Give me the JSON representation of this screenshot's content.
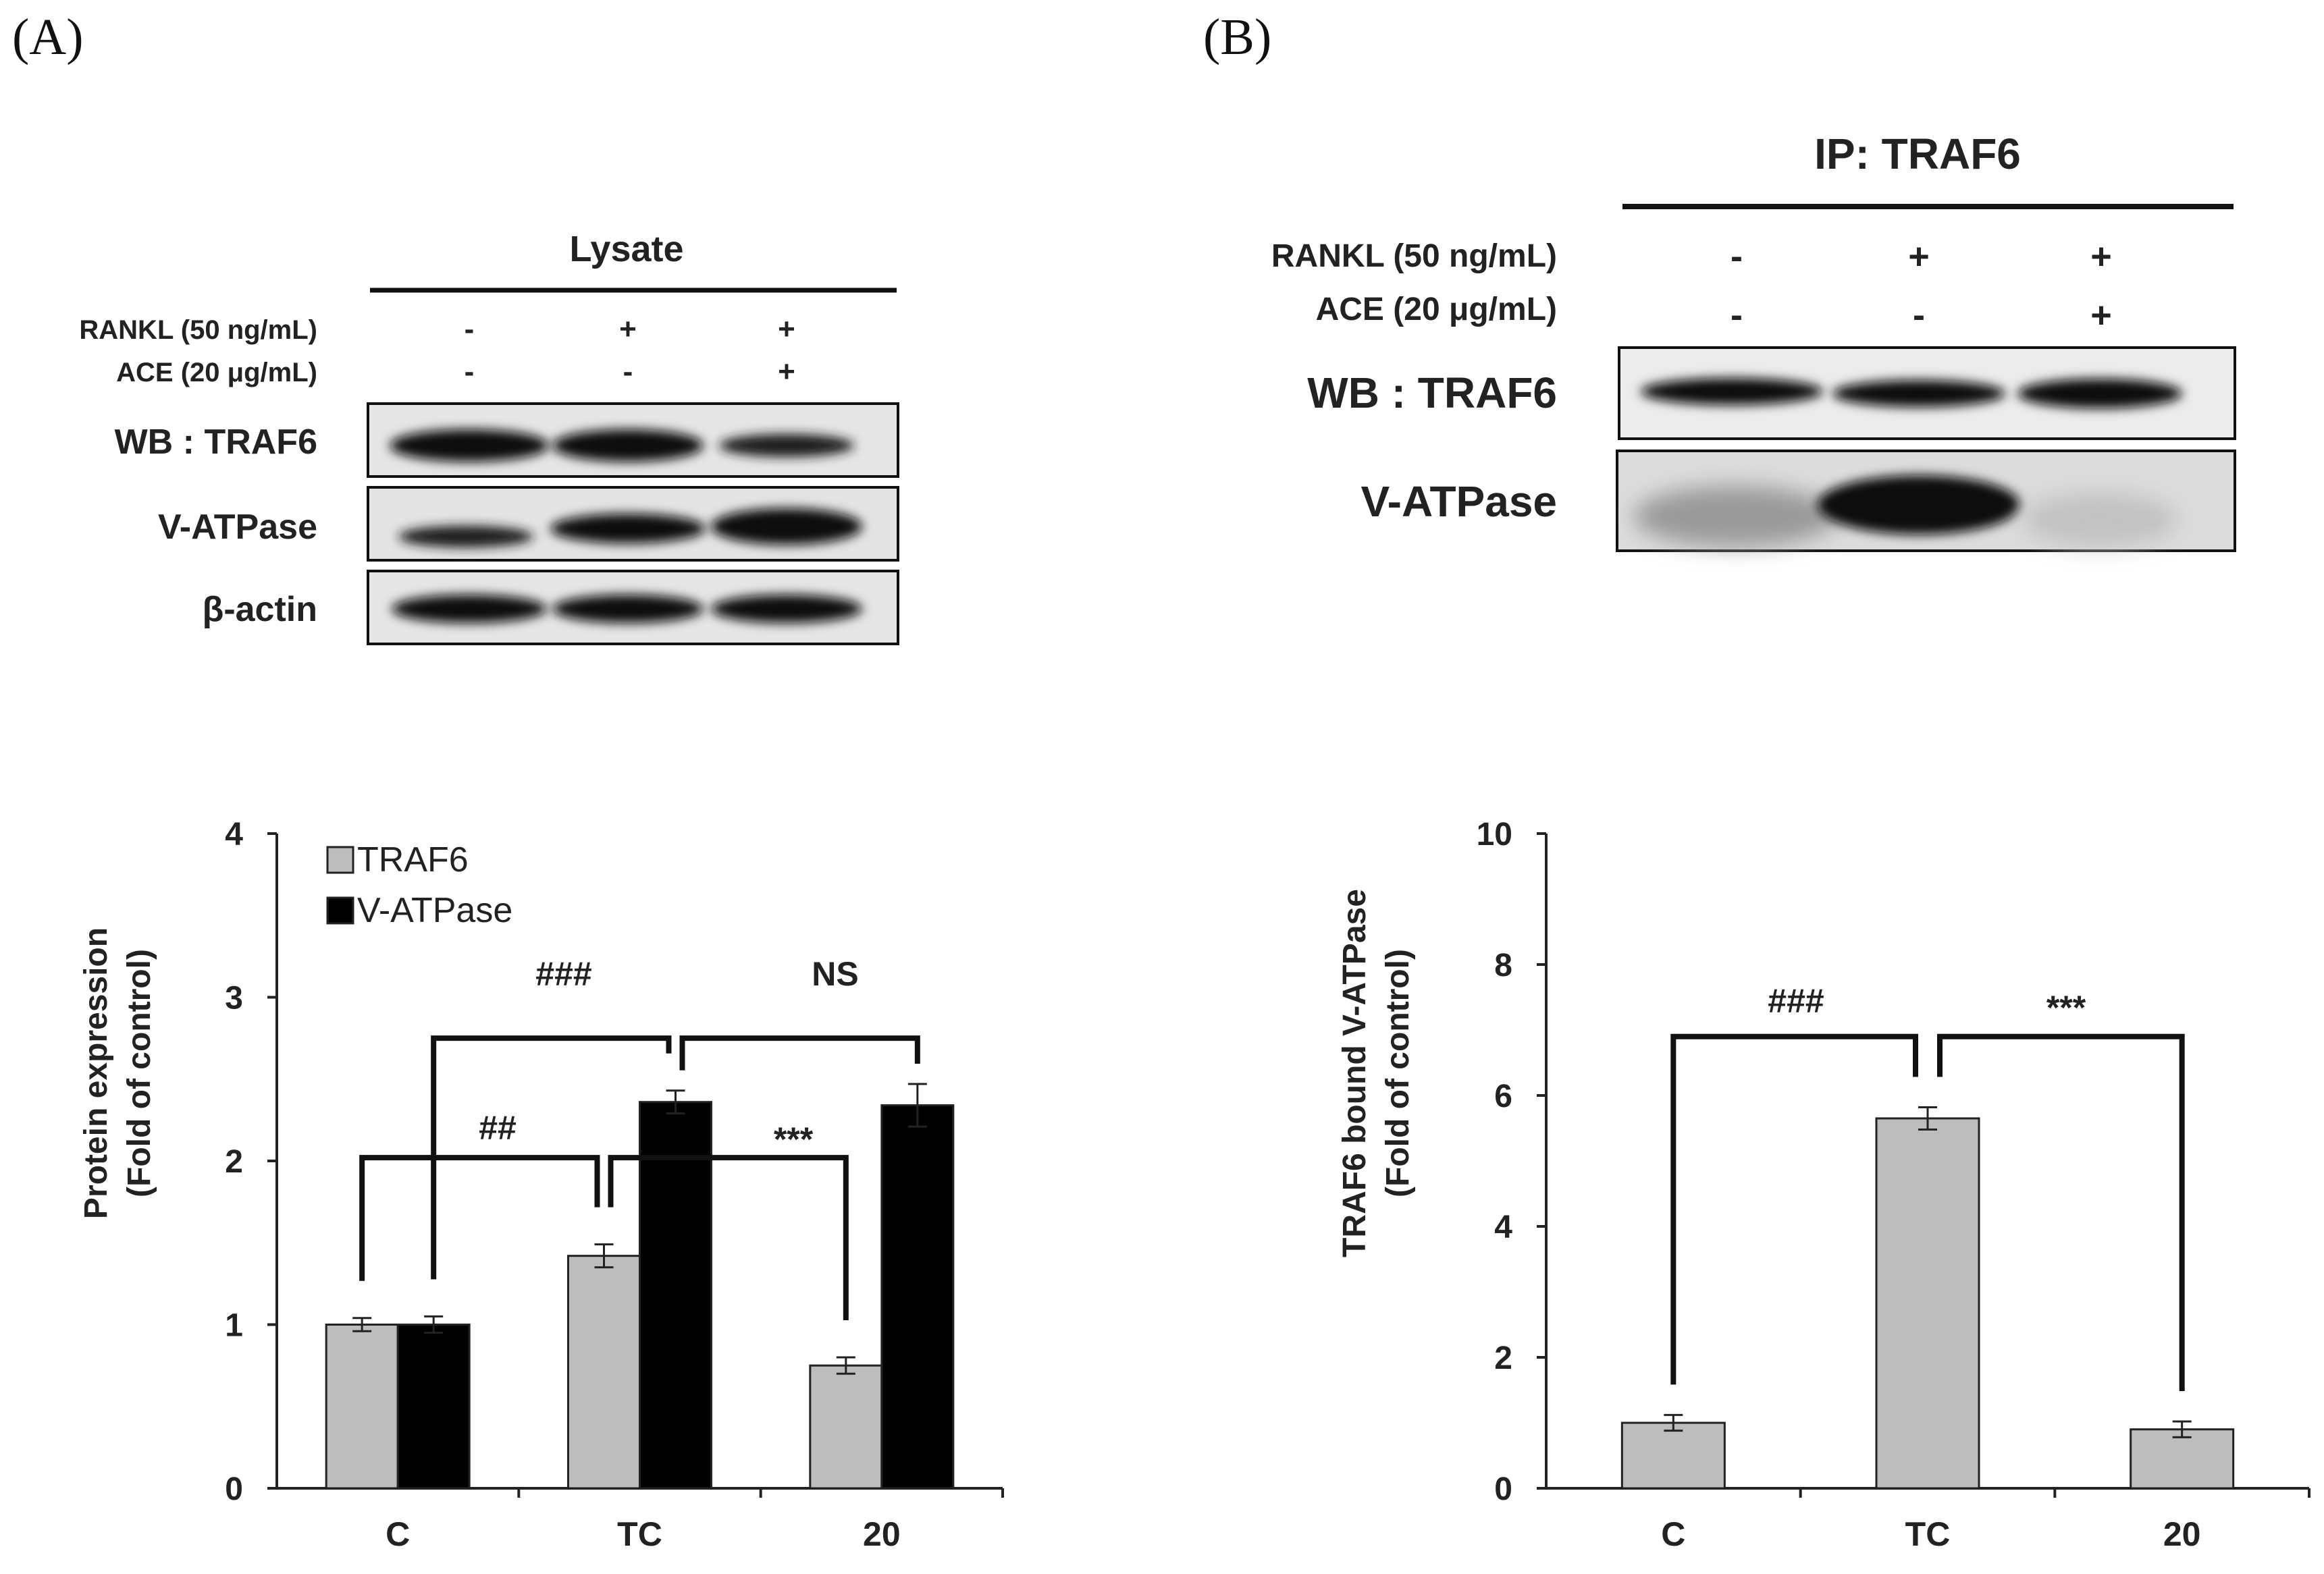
{
  "panels": {
    "a_label": "(A)",
    "b_label": "(B)"
  },
  "blot_a": {
    "header": "Lysate",
    "rankl_label": "RANKL (50 ng/mL)",
    "ace_label": "ACE (20 μg/mL)",
    "rankl_signs": [
      "-",
      "+",
      "+"
    ],
    "ace_signs": [
      "-",
      "-",
      "+"
    ],
    "rows": [
      "WB : TRAF6",
      "V-ATPase",
      "β-actin"
    ]
  },
  "blot_b": {
    "header": "IP: TRAF6",
    "rankl_label": "RANKL (50 ng/mL)",
    "ace_label": "ACE (20 μg/mL)",
    "rankl_signs": [
      "-",
      "+",
      "+"
    ],
    "ace_signs": [
      "-",
      "-",
      "+"
    ],
    "rows": [
      "WB : TRAF6",
      "V-ATPase"
    ]
  },
  "chart_data": [
    {
      "type": "bar",
      "ylabel_line1": "Protein expression",
      "ylabel_line2": "(Fold of control)",
      "xlabel": "",
      "categories": [
        "C",
        "TC",
        "20"
      ],
      "ylim": [
        0,
        4
      ],
      "yticks": [
        0,
        1,
        2,
        3,
        4
      ],
      "series": [
        {
          "name": "TRAF6",
          "color": "#bdbdbd",
          "values": [
            1.0,
            1.42,
            0.75
          ],
          "errors": [
            0.04,
            0.07,
            0.05
          ]
        },
        {
          "name": "V-ATPase",
          "color": "#000000",
          "values": [
            1.0,
            2.36,
            2.34
          ],
          "errors": [
            0.05,
            0.07,
            0.13
          ]
        }
      ],
      "legend": "top-left",
      "annotations": [
        {
          "text": "###",
          "between": "C V-ATPase and TC V-ATPase"
        },
        {
          "text": "NS",
          "between": "TC V-ATPase and 20 V-ATPase"
        },
        {
          "text": "##",
          "between": "C TRAF6 and TC TRAF6"
        },
        {
          "text": "***",
          "between": "TC TRAF6 and 20 TRAF6"
        }
      ]
    },
    {
      "type": "bar",
      "ylabel_line1": "TRAF6 bound V-ATPase",
      "ylabel_line2": "(Fold of control)",
      "xlabel": "",
      "categories": [
        "C",
        "TC",
        "20"
      ],
      "ylim": [
        0,
        10
      ],
      "yticks": [
        0,
        2,
        4,
        6,
        8,
        10
      ],
      "series": [
        {
          "name": "TRAF6 bound V-ATPase",
          "color": "#bdbdbd",
          "values": [
            1.0,
            5.65,
            0.9
          ],
          "errors": [
            0.12,
            0.17,
            0.12
          ]
        }
      ],
      "annotations": [
        {
          "text": "###",
          "between": "C and TC"
        },
        {
          "text": "***",
          "between": "TC and 20"
        }
      ]
    }
  ]
}
